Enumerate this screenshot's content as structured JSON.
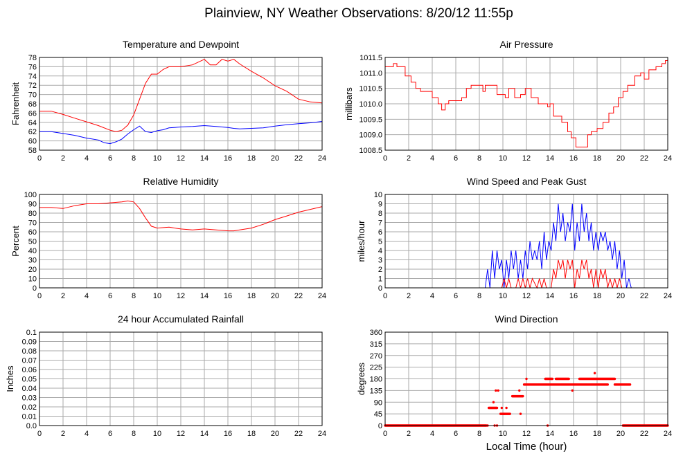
{
  "page": {
    "title": "Plainview, NY Weather Observations: 8/20/12 11:55p"
  },
  "xlabel": "Local Time (hour)",
  "chart_data": [
    {
      "type": "line",
      "title": "Temperature and Dewpoint",
      "ylabel": "Fahrenheit",
      "xlim": [
        0,
        24
      ],
      "xticks": [
        0,
        2,
        4,
        6,
        8,
        10,
        12,
        14,
        16,
        18,
        20,
        22,
        24
      ],
      "ylim": [
        58,
        78
      ],
      "yticks": [
        58,
        60,
        62,
        64,
        66,
        68,
        70,
        72,
        74,
        76,
        78
      ],
      "grid": true,
      "series": [
        {
          "color": "#ff0000",
          "x": [
            0,
            1,
            2,
            3,
            4,
            5,
            6,
            6.5,
            7,
            7.5,
            8,
            8.5,
            9,
            9.5,
            10,
            10.5,
            11,
            12,
            13,
            13.5,
            14,
            14.5,
            15,
            15.5,
            16,
            16.5,
            17,
            18,
            19,
            20,
            21,
            22,
            23,
            24
          ],
          "y": [
            66.4,
            66.4,
            65.7,
            64.9,
            64.1,
            63.3,
            62.3,
            62.0,
            62.3,
            63.4,
            65.6,
            69.0,
            72.4,
            74.4,
            74.4,
            75.4,
            76.0,
            76.0,
            76.4,
            77.0,
            77.6,
            76.4,
            76.4,
            77.6,
            77.2,
            77.6,
            76.6,
            75.0,
            73.6,
            71.9,
            70.7,
            69.0,
            68.4,
            68.2
          ]
        },
        {
          "color": "#0000ff",
          "x": [
            0,
            1,
            2,
            3,
            4,
            5,
            5.5,
            6,
            6.5,
            7,
            7.5,
            8,
            8.5,
            9,
            9.5,
            10,
            10.5,
            11,
            12,
            13,
            14,
            15,
            16,
            16.5,
            17,
            18,
            19,
            20,
            21,
            22,
            23,
            24
          ],
          "y": [
            62.0,
            62.0,
            61.6,
            61.2,
            60.6,
            60.2,
            59.6,
            59.4,
            59.8,
            60.4,
            61.5,
            62.4,
            63.2,
            62.0,
            61.8,
            62.2,
            62.4,
            62.8,
            63.0,
            63.1,
            63.3,
            63.1,
            62.9,
            62.7,
            62.6,
            62.7,
            62.8,
            63.2,
            63.5,
            63.7,
            63.9,
            64.2
          ]
        }
      ]
    },
    {
      "type": "line",
      "title": "Air Pressure",
      "ylabel": "millibars",
      "xlim": [
        0,
        24
      ],
      "xticks": [
        0,
        2,
        4,
        6,
        8,
        10,
        12,
        14,
        16,
        18,
        20,
        22,
        24
      ],
      "ylim": [
        1008.5,
        1011.5
      ],
      "yticks": [
        1008.5,
        1009.0,
        1009.5,
        1010.0,
        1010.5,
        1011.0,
        1011.5
      ],
      "grid": true,
      "series": [
        {
          "color": "#ff0000",
          "step": true,
          "x": [
            0,
            0.7,
            1.0,
            1.7,
            2.2,
            2.6,
            3.0,
            4.0,
            4.5,
            4.8,
            5.1,
            5.4,
            6.0,
            6.5,
            6.9,
            7.3,
            8.3,
            8.5,
            9.5,
            10.2,
            10.5,
            11.0,
            11.5,
            11.9,
            12.4,
            13.0,
            13.8,
            14.0,
            14.3,
            15.0,
            15.5,
            15.8,
            16.2,
            16.6,
            17.2,
            17.5,
            18.0,
            18.5,
            19.0,
            19.4,
            19.8,
            20.2,
            20.6,
            21.2,
            21.7,
            22.0,
            22.4,
            23.0,
            23.5,
            23.8,
            24
          ],
          "y": [
            1011.2,
            1011.3,
            1011.2,
            1010.9,
            1010.7,
            1010.5,
            1010.4,
            1010.2,
            1010.0,
            1009.8,
            1010.0,
            1010.1,
            1010.1,
            1010.2,
            1010.5,
            1010.6,
            1010.4,
            1010.6,
            1010.3,
            1010.2,
            1010.5,
            1010.2,
            1010.3,
            1010.5,
            1010.2,
            1010.0,
            1009.9,
            1010.0,
            1009.6,
            1009.4,
            1009.1,
            1008.9,
            1008.6,
            1008.6,
            1009.0,
            1009.1,
            1009.2,
            1009.4,
            1009.7,
            1009.9,
            1010.2,
            1010.4,
            1010.6,
            1010.9,
            1011.0,
            1010.8,
            1011.1,
            1011.2,
            1011.3,
            1011.4,
            1011.5
          ]
        }
      ]
    },
    {
      "type": "line",
      "title": "Relative Humidity",
      "ylabel": "Percent",
      "xlim": [
        0,
        24
      ],
      "xticks": [
        0,
        2,
        4,
        6,
        8,
        10,
        12,
        14,
        16,
        18,
        20,
        22,
        24
      ],
      "ylim": [
        0,
        100
      ],
      "yticks": [
        0,
        10,
        20,
        30,
        40,
        50,
        60,
        70,
        80,
        90,
        100
      ],
      "grid": true,
      "series": [
        {
          "color": "#ff0000",
          "x": [
            0,
            1,
            2,
            3,
            4,
            5,
            6,
            7,
            7.5,
            8,
            8.5,
            9,
            9.5,
            10,
            11,
            12,
            13,
            14,
            15,
            16,
            16.5,
            17,
            18,
            19,
            20,
            21,
            22,
            23,
            24
          ],
          "y": [
            86,
            86,
            85,
            88,
            90,
            90,
            91,
            92,
            93,
            92,
            85,
            75,
            66,
            64,
            65,
            63,
            62,
            63,
            62,
            61,
            61,
            62,
            64,
            68,
            73,
            77,
            81,
            84,
            87
          ]
        }
      ]
    },
    {
      "type": "line",
      "title": "Wind Speed and Peak Gust",
      "ylabel": "miles/hour",
      "xlim": [
        0,
        24
      ],
      "xticks": [
        0,
        2,
        4,
        6,
        8,
        10,
        12,
        14,
        16,
        18,
        20,
        22,
        24
      ],
      "ylim": [
        0,
        10
      ],
      "yticks": [
        0,
        1,
        2,
        3,
        4,
        5,
        6,
        7,
        8,
        9,
        10
      ],
      "grid": true,
      "series": [
        {
          "color": "#0000ff",
          "x": [
            0,
            8.5,
            8.7,
            8.9,
            9.1,
            9.3,
            9.5,
            9.7,
            9.9,
            10.1,
            10.3,
            10.5,
            10.7,
            10.9,
            11.1,
            11.3,
            11.5,
            11.7,
            11.9,
            12.1,
            12.3,
            12.5,
            12.7,
            12.9,
            13.1,
            13.3,
            13.5,
            13.7,
            13.9,
            14.1,
            14.3,
            14.5,
            14.7,
            14.9,
            15.1,
            15.3,
            15.5,
            15.7,
            15.9,
            16.1,
            16.3,
            16.5,
            16.7,
            16.9,
            17.1,
            17.3,
            17.5,
            17.7,
            17.9,
            18.1,
            18.3,
            18.5,
            18.7,
            18.9,
            19.1,
            19.3,
            19.5,
            19.7,
            19.9,
            20.1,
            20.3,
            20.5,
            20.7,
            20.9,
            24
          ],
          "y": [
            0,
            0,
            2,
            0,
            4,
            1,
            4,
            2,
            3,
            0,
            3,
            1,
            4,
            2,
            4,
            1,
            3,
            1,
            4,
            2,
            5,
            3,
            4,
            3,
            5,
            2,
            6,
            3,
            5,
            4,
            7,
            5,
            9,
            6,
            8,
            5,
            7,
            6,
            9,
            4,
            7,
            5,
            9,
            6,
            8,
            5,
            7,
            4,
            6,
            4,
            6,
            5,
            6,
            4,
            5,
            3,
            5,
            2,
            4,
            1,
            3,
            0,
            1,
            0,
            0
          ]
        },
        {
          "color": "#ff0000",
          "x": [
            0,
            9.9,
            10.1,
            10.3,
            10.5,
            10.7,
            11.1,
            11.3,
            11.5,
            11.7,
            11.9,
            12.1,
            12.3,
            12.5,
            12.9,
            13.1,
            13.3,
            13.5,
            13.7,
            14.1,
            14.3,
            14.5,
            14.7,
            14.9,
            15.1,
            15.3,
            15.5,
            15.7,
            15.9,
            16.1,
            16.3,
            16.5,
            16.7,
            16.9,
            17.1,
            17.3,
            17.5,
            17.7,
            17.9,
            18.1,
            18.3,
            18.5,
            18.7,
            18.9,
            19.1,
            19.3,
            19.5,
            19.7,
            19.9,
            20.1,
            24
          ],
          "y": [
            0,
            0,
            1,
            0,
            1,
            0,
            0,
            1,
            0,
            1,
            0,
            1,
            0,
            1,
            0,
            1,
            0,
            1,
            0,
            0,
            2,
            1,
            3,
            2,
            3,
            1,
            3,
            2,
            3,
            0,
            2,
            1,
            3,
            2,
            3,
            1,
            2,
            0,
            2,
            0,
            2,
            1,
            2,
            0,
            1,
            0,
            1,
            0,
            1,
            0,
            0
          ]
        }
      ]
    },
    {
      "type": "line",
      "title": "24 hour Accumulated Rainfall",
      "ylabel": "Inches",
      "xlim": [
        0,
        24
      ],
      "xticks": [
        0,
        2,
        4,
        6,
        8,
        10,
        12,
        14,
        16,
        18,
        20,
        22,
        24
      ],
      "ylim": [
        0.0,
        0.1
      ],
      "yticks": [
        "0.0",
        "0.01",
        "0.02",
        "0.03",
        "0.04",
        "0.05",
        "0.06",
        "0.07",
        "0.08",
        "0.09",
        "0.1"
      ],
      "grid": true,
      "series": [
        {
          "color": "#ff0000",
          "x": [
            0,
            24
          ],
          "y": [
            0,
            0
          ]
        }
      ]
    },
    {
      "type": "scatter",
      "title": "Wind Direction",
      "ylabel": "degrees",
      "xlabel": "Local Time (hour)",
      "xlim": [
        0,
        24
      ],
      "xticks": [
        0,
        2,
        4,
        6,
        8,
        10,
        12,
        14,
        16,
        18,
        20,
        22,
        24
      ],
      "ylim": [
        0,
        360
      ],
      "yticks": [
        0,
        45,
        90,
        135,
        180,
        225,
        270,
        315,
        360
      ],
      "grid": true,
      "series": [
        {
          "color": "#ff0000",
          "marker": "dot",
          "segments": [
            {
              "x0": 0,
              "x1": 8.6,
              "y": 0
            },
            {
              "x0": 8.8,
              "x1": 9.5,
              "y": 68
            },
            {
              "x0": 9.8,
              "x1": 10.6,
              "y": 45
            },
            {
              "x0": 10.8,
              "x1": 11.7,
              "y": 113
            },
            {
              "x0": 11.8,
              "x1": 15.5,
              "y": 158
            },
            {
              "x0": 13.6,
              "x1": 14.2,
              "y": 180
            },
            {
              "x0": 14.5,
              "x1": 15.6,
              "y": 180
            },
            {
              "x0": 15.5,
              "x1": 16.4,
              "y": 158
            },
            {
              "x0": 16.5,
              "x1": 19.5,
              "y": 180
            },
            {
              "x0": 16.3,
              "x1": 18.9,
              "y": 158
            },
            {
              "x0": 19.5,
              "x1": 20.8,
              "y": 158
            },
            {
              "x0": 20.2,
              "x1": 24,
              "y": 0
            }
          ],
          "points": [
            [
              8.7,
              0
            ],
            [
              9.3,
              0
            ],
            [
              9.5,
              0
            ],
            [
              9.2,
              90
            ],
            [
              9.4,
              135
            ],
            [
              9.6,
              135
            ],
            [
              9.9,
              68
            ],
            [
              10.1,
              45
            ],
            [
              11.4,
              135
            ],
            [
              11.5,
              45
            ],
            [
              13.8,
              0
            ],
            [
              15.9,
              135
            ],
            [
              17.8,
              202
            ],
            [
              10.3,
              68
            ],
            [
              12.0,
              180
            ]
          ]
        }
      ]
    }
  ]
}
